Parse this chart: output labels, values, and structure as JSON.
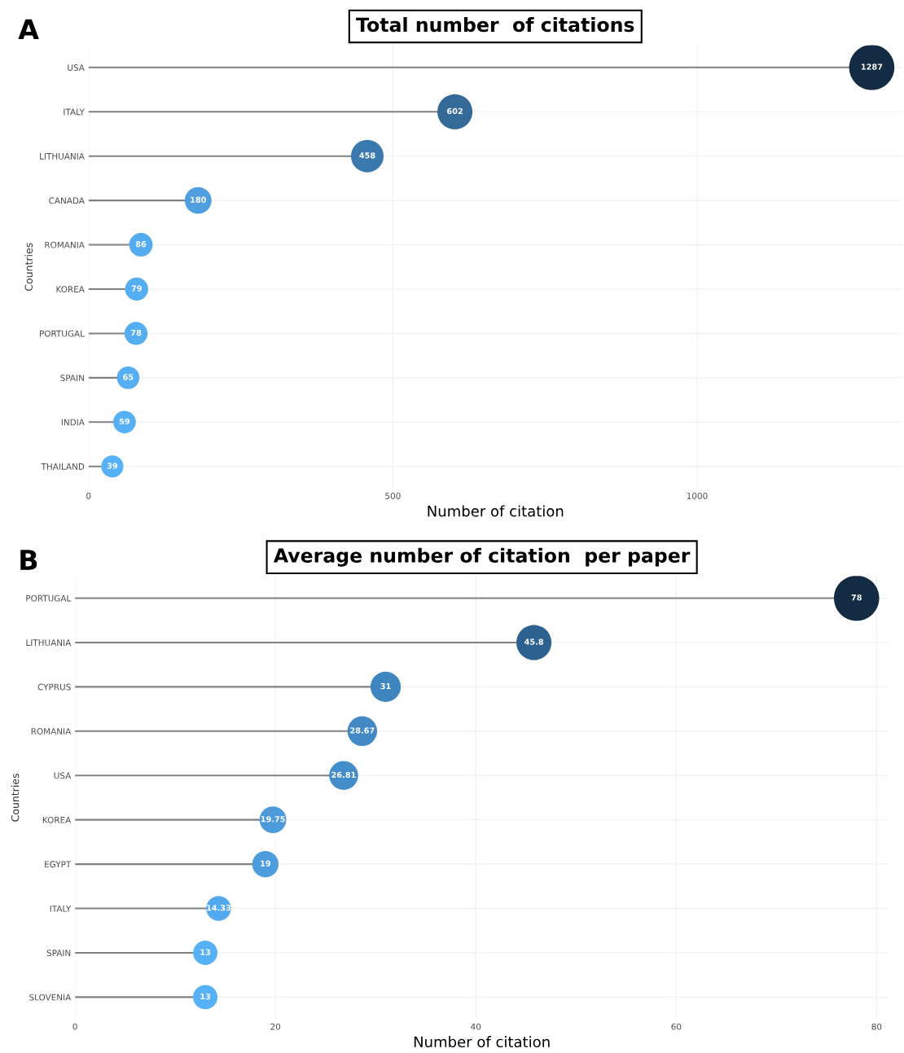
{
  "chart_data": [
    {
      "type": "lollipop",
      "orientation": "horizontal",
      "title": "Total number  of citations",
      "xlabel": "Number of citation",
      "ylabel": "Countries",
      "annotations": [
        "A"
      ],
      "categories": [
        "USA",
        "ITALY",
        "LITHUANIA",
        "CANADA",
        "ROMANIA",
        "KOREA",
        "PORTUGAL",
        "SPAIN",
        "INDIA",
        "THAILAND"
      ],
      "values": [
        1287,
        602,
        458,
        180,
        86,
        79,
        78,
        65,
        59,
        39
      ],
      "sizes": [
        1,
        0.6,
        0.52,
        0.35,
        0.27,
        0.26,
        0.26,
        0.25,
        0.25,
        0.24
      ],
      "colors": [
        "#132b43",
        "#336a98",
        "#3a79ae",
        "#4e9ee0",
        "#54acf0",
        "#55adf2",
        "#55adf2",
        "#56aff4",
        "#56b0f5",
        "#56b1f7"
      ],
      "xlim": [
        0,
        1337
      ],
      "xticks": [
        0,
        500,
        1000
      ],
      "grid": true,
      "data_labels": true
    },
    {
      "type": "lollipop",
      "orientation": "horizontal",
      "title": "Average number of citation  per paper",
      "xlabel": "Number of citation",
      "ylabel": "Countries",
      "annotations": [
        "B"
      ],
      "categories": [
        "PORTUGAL",
        "LITHUANIA",
        "CYPRUS",
        "ROMANIA",
        "USA",
        "KOREA",
        "EGYPT",
        "ITALY",
        "SPAIN",
        "SLOVENIA"
      ],
      "values": [
        78,
        45.8,
        31,
        28.67,
        26.81,
        19.75,
        19,
        14.33,
        13,
        13
      ],
      "sizes": [
        1,
        0.6,
        0.45,
        0.43,
        0.41,
        0.35,
        0.34,
        0.3,
        0.29,
        0.29
      ],
      "colors": [
        "#132b43",
        "#2d6190",
        "#3f85c0",
        "#4289c6",
        "#448dcb",
        "#4c9ada",
        "#4d9cdc",
        "#53a9ee",
        "#56b1f7",
        "#56b1f7"
      ],
      "xlim": [
        0,
        81.2
      ],
      "xticks": [
        0,
        20,
        40,
        60,
        80
      ],
      "grid": true,
      "data_labels": true
    }
  ]
}
